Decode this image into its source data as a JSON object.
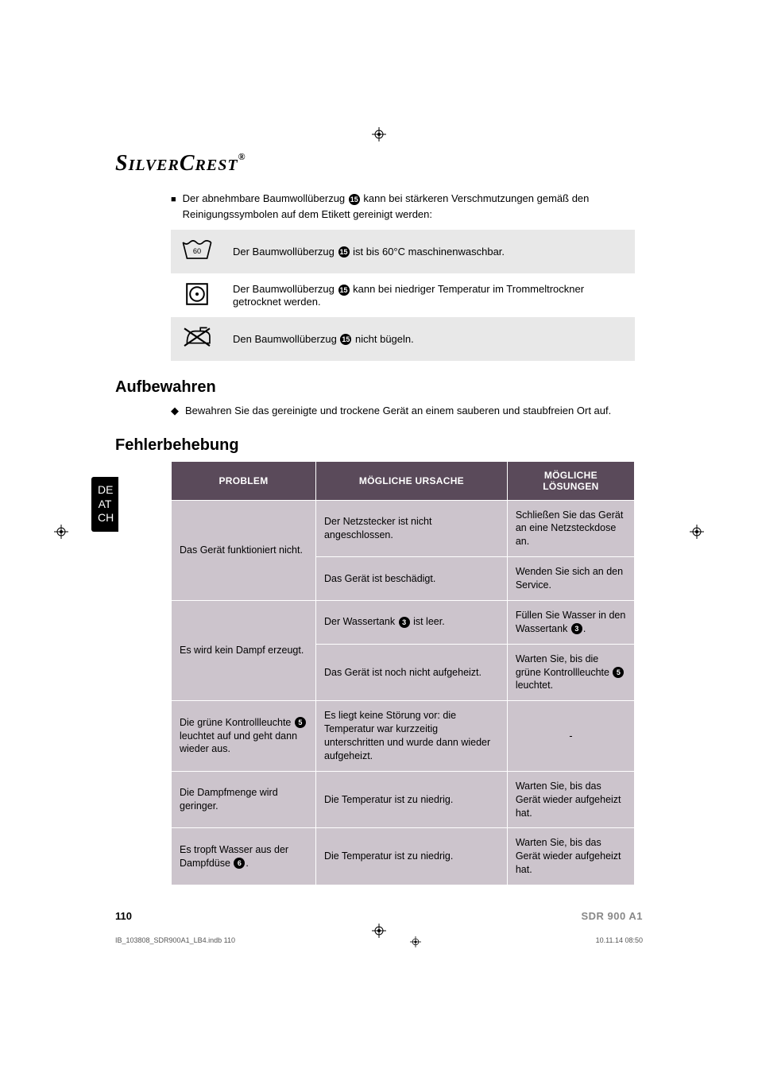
{
  "logo": {
    "text": "SilverCrest",
    "reg": "®"
  },
  "intro": {
    "prefix": "Der abnehmbare Baumwollüberzug ",
    "ref": "⓯",
    "suffix": " kann bei stärkeren Verschmutzungen gemäß den Reinigungssymbolen auf dem Etikett gereinigt werden:"
  },
  "care_rows": [
    {
      "shaded": true,
      "icon": "wash",
      "pre": "Der Baumwollüberzug ",
      "ref": "⓯",
      "post": " ist bis 60°C maschinenwaschbar."
    },
    {
      "shaded": false,
      "icon": "dry",
      "pre": "Der Baumwollüberzug ",
      "ref": "⓯",
      "post": " kann bei niedriger Temperatur im Trommeltrockner getrocknet werden."
    },
    {
      "shaded": true,
      "icon": "iron",
      "pre": "Den Baumwollüberzug ",
      "ref": "⓯",
      "post": " nicht bügeln."
    }
  ],
  "sections": {
    "aufbewahren": "Aufbewahren",
    "aufbewahren_text": "Bewahren Sie das gereinigte und trockene Gerät an einem sauberen und staubfreien Ort auf.",
    "fehler": "Fehlerbehebung"
  },
  "lang_tab": [
    "DE",
    "AT",
    "CH"
  ],
  "trouble": {
    "headers": [
      "PROBLEM",
      "MÖGLICHE URSACHE",
      "MÖGLICHE LÖSUNGEN"
    ],
    "rows": [
      {
        "problem": {
          "text": "Das Gerät funktioniert nicht.",
          "rowspan": 2
        },
        "cause": "Der Netzstecker ist nicht angeschlossen.",
        "solution": "Schließen Sie das Gerät an eine Netzsteckdose an."
      },
      {
        "cause": "Das Gerät ist beschädigt.",
        "solution": "Wenden Sie sich an den Service."
      },
      {
        "problem": {
          "text": "Es wird kein Dampf erzeugt.",
          "rowspan": 2
        },
        "cause_parts": [
          "Der Wassertank ",
          {
            "ref": "3"
          },
          " ist leer."
        ],
        "solution_parts": [
          "Füllen Sie Wasser in den Wassertank ",
          {
            "ref": "3"
          },
          "."
        ]
      },
      {
        "cause": "Das Gerät ist noch nicht aufgeheizt.",
        "solution_parts": [
          "Warten Sie, bis die grüne Kontrollleuchte ",
          {
            "ref": "5"
          },
          " leuchtet."
        ]
      },
      {
        "problem_parts": [
          "Die grüne Kontrollleuchte ",
          {
            "ref": "5"
          },
          " leuchtet auf und geht dann wieder aus."
        ],
        "cause": "Es liegt keine Störung vor: die Temperatur war kurzzeitig unterschritten und wurde dann wieder aufgeheizt.",
        "solution_center": "-"
      },
      {
        "problem": {
          "text": "Die Dampfmenge wird geringer."
        },
        "cause": "Die Temperatur ist zu niedrig.",
        "solution": "Warten Sie, bis das Gerät wieder aufgeheizt hat."
      },
      {
        "problem_parts": [
          "Es tropft Wasser aus der Dampfdüse ",
          {
            "ref": "6"
          },
          "."
        ],
        "cause": "Die Temperatur ist zu niedrig.",
        "solution": "Warten Sie, bis das Gerät wieder aufgeheizt hat."
      }
    ]
  },
  "footer": {
    "page": "110",
    "model": "SDR 900 A1"
  },
  "imprint": {
    "left": "IB_103808_SDR900A1_LB4.indb   110",
    "right": "10.11.14   08:50"
  },
  "colors": {
    "th_bg": "#5a4a5a",
    "td_bg": "#ccc4cc",
    "shade": "#e8e8e8"
  },
  "wash_temp": "60"
}
